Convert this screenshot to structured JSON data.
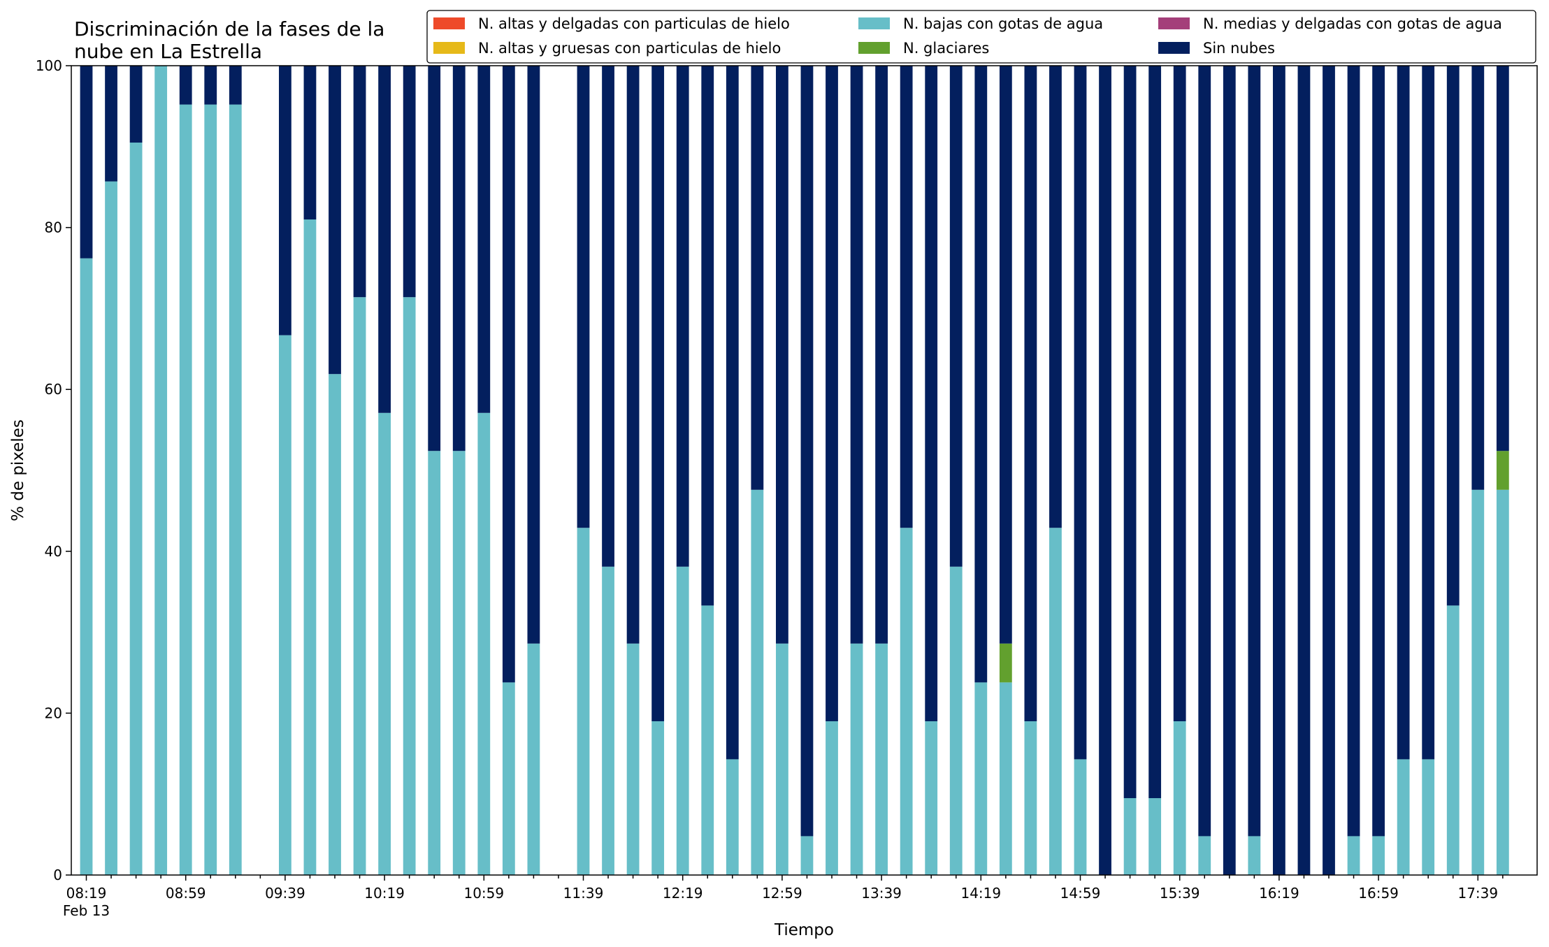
{
  "chart_data": {
    "type": "bar",
    "stacked": true,
    "title": "Discriminación de la fases de la\nnube en La Estrella",
    "xlabel": "Tiempo",
    "ylabel": "% de pixeles",
    "ylim": [
      0,
      100
    ],
    "yticks": [
      0,
      20,
      40,
      60,
      80,
      100
    ],
    "xtick_labels": [
      "08:19",
      "08:59",
      "09:39",
      "10:19",
      "10:59",
      "11:39",
      "12:19",
      "12:59",
      "13:39",
      "14:19",
      "14:59",
      "15:39",
      "16:19",
      "16:59",
      "17:39"
    ],
    "xtick_sublabel": "Feb 13",
    "bar_interval_minutes": 10,
    "start_time": "08:19",
    "grid": false,
    "legend_position": "top-right",
    "legend_ncol": 3,
    "categories": [
      "08:19",
      "08:29",
      "08:39",
      "08:49",
      "08:59",
      "09:09",
      "09:19",
      "09:29",
      "09:39",
      "09:49",
      "09:59",
      "10:09",
      "10:19",
      "10:29",
      "10:39",
      "10:49",
      "10:59",
      "11:09",
      "11:19",
      "11:29",
      "11:39",
      "11:49",
      "11:59",
      "12:09",
      "12:19",
      "12:29",
      "12:39",
      "12:49",
      "12:59",
      "13:09",
      "13:19",
      "13:29",
      "13:39",
      "13:49",
      "13:59",
      "14:09",
      "14:19",
      "14:29",
      "14:39",
      "14:49",
      "14:59",
      "15:09",
      "15:19",
      "15:29",
      "15:39",
      "15:49",
      "15:59",
      "16:09",
      "16:19",
      "16:29",
      "16:39",
      "16:49",
      "16:59",
      "17:09",
      "17:19",
      "17:29",
      "17:39",
      "17:49"
    ],
    "series": [
      {
        "name": "N. altas y delgadas con particulas de hielo",
        "color": "#ee4a2a",
        "values": [
          0,
          0,
          0,
          0,
          0,
          0,
          0,
          null,
          0,
          0,
          0,
          0,
          0,
          0,
          0,
          0,
          0,
          0,
          0,
          null,
          0,
          0,
          0,
          0,
          0,
          0,
          0,
          0,
          0,
          0,
          0,
          0,
          0,
          0,
          0,
          0,
          0,
          0,
          0,
          0,
          0,
          0,
          0,
          0,
          0,
          0,
          0,
          0,
          0,
          0,
          0,
          0,
          0,
          0,
          0,
          0,
          0,
          0
        ]
      },
      {
        "name": "N. altas y gruesas con particulas de hielo",
        "color": "#e6b919",
        "values": [
          0,
          0,
          0,
          0,
          0,
          0,
          0,
          null,
          0,
          0,
          0,
          0,
          0,
          0,
          0,
          0,
          0,
          0,
          0,
          null,
          0,
          0,
          0,
          0,
          0,
          0,
          0,
          0,
          0,
          0,
          0,
          0,
          0,
          0,
          0,
          0,
          0,
          0,
          0,
          0,
          0,
          0,
          0,
          0,
          0,
          0,
          0,
          0,
          0,
          0,
          0,
          0,
          0,
          0,
          0,
          0,
          0,
          0
        ]
      },
      {
        "name": "N. bajas con gotas de agua",
        "color": "#67bec8",
        "values": [
          76.2,
          85.7,
          90.5,
          100,
          95.2,
          95.2,
          95.2,
          null,
          66.7,
          81,
          61.9,
          71.4,
          57.1,
          71.4,
          52.4,
          52.4,
          57.1,
          23.8,
          28.6,
          null,
          42.9,
          38.1,
          28.6,
          19,
          38.1,
          33.3,
          14.3,
          47.6,
          28.6,
          4.8,
          19,
          28.6,
          28.6,
          42.9,
          19,
          38.1,
          23.8,
          23.8,
          19,
          42.9,
          14.3,
          0,
          9.5,
          9.5,
          19,
          4.8,
          0,
          4.8,
          0,
          0,
          0,
          4.8,
          4.8,
          14.3,
          14.3,
          33.3,
          47.6,
          47.6
        ]
      },
      {
        "name": "N. glaciares",
        "color": "#62a02e",
        "values": [
          0,
          0,
          0,
          0,
          0,
          0,
          0,
          null,
          0,
          0,
          0,
          0,
          0,
          0,
          0,
          0,
          0,
          0,
          0,
          null,
          0,
          0,
          0,
          0,
          0,
          0,
          0,
          0,
          0,
          0,
          0,
          0,
          0,
          0,
          0,
          0,
          0,
          4.8,
          0,
          0,
          0,
          0,
          0,
          0,
          0,
          0,
          0,
          0,
          0,
          0,
          0,
          0,
          0,
          0,
          0,
          0,
          0,
          4.8
        ]
      },
      {
        "name": "N. medias y delgadas con gotas de agua",
        "color": "#a43f7a",
        "values": [
          0,
          0,
          0,
          0,
          0,
          0,
          0,
          null,
          0,
          0,
          0,
          0,
          0,
          0,
          0,
          0,
          0,
          0,
          0,
          null,
          0,
          0,
          0,
          0,
          0,
          0,
          0,
          0,
          0,
          0,
          0,
          0,
          0,
          0,
          0,
          0,
          0,
          0,
          0,
          0,
          0,
          0,
          0,
          0,
          0,
          0,
          0,
          0,
          0,
          0,
          0,
          0,
          0,
          0,
          0,
          0,
          0,
          0
        ]
      },
      {
        "name": "Sin nubes",
        "color": "#031f5e",
        "values": [
          23.8,
          14.3,
          9.5,
          0,
          4.8,
          4.8,
          4.8,
          null,
          33.3,
          19,
          38.1,
          28.6,
          42.9,
          28.6,
          47.6,
          47.6,
          42.9,
          76.2,
          71.4,
          null,
          57.1,
          61.9,
          71.4,
          81,
          61.9,
          66.7,
          85.7,
          52.4,
          71.4,
          95.2,
          81,
          71.4,
          71.4,
          57.1,
          81,
          61.9,
          76.2,
          71.4,
          81,
          57.1,
          85.7,
          100,
          90.5,
          90.5,
          81,
          95.2,
          100,
          95.2,
          100,
          100,
          100,
          95.2,
          95.2,
          85.7,
          85.7,
          66.7,
          52.4,
          47.6
        ]
      }
    ]
  }
}
